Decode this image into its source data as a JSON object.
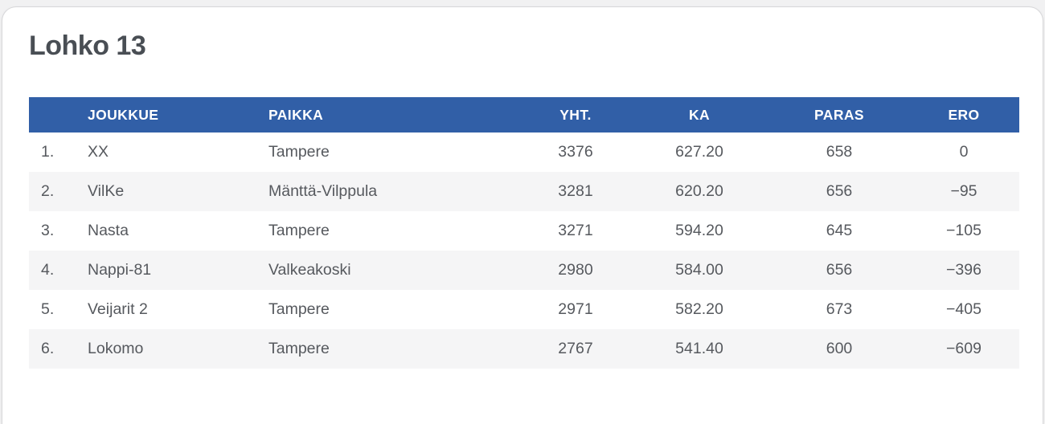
{
  "page": {
    "title": "Lohko 13"
  },
  "colors": {
    "header_background": "#315fa7",
    "header_text": "#ffffff",
    "row_stripe": "#f5f5f6",
    "body_text": "#56595e",
    "title_text": "#494e54",
    "card_background": "#ffffff"
  },
  "table": {
    "columns": [
      "",
      "JOUKKUE",
      "PAIKKA",
      "YHT.",
      "KA",
      "PARAS",
      "ERO"
    ],
    "rows": [
      {
        "rank": "1.",
        "joukkue": "XX",
        "paikka": "Tampere",
        "yht": "3376",
        "ka": "627.20",
        "paras": "658",
        "ero": "0"
      },
      {
        "rank": "2.",
        "joukkue": "VilKe",
        "paikka": "Mänttä-Vilppula",
        "yht": "3281",
        "ka": "620.20",
        "paras": "656",
        "ero": "−95"
      },
      {
        "rank": "3.",
        "joukkue": "Nasta",
        "paikka": "Tampere",
        "yht": "3271",
        "ka": "594.20",
        "paras": "645",
        "ero": "−105"
      },
      {
        "rank": "4.",
        "joukkue": "Nappi-81",
        "paikka": "Valkeakoski",
        "yht": "2980",
        "ka": "584.00",
        "paras": "656",
        "ero": "−396"
      },
      {
        "rank": "5.",
        "joukkue": "Veijarit 2",
        "paikka": "Tampere",
        "yht": "2971",
        "ka": "582.20",
        "paras": "673",
        "ero": "−405"
      },
      {
        "rank": "6.",
        "joukkue": "Lokomo",
        "paikka": "Tampere",
        "yht": "2767",
        "ka": "541.40",
        "paras": "600",
        "ero": "−609"
      }
    ]
  }
}
